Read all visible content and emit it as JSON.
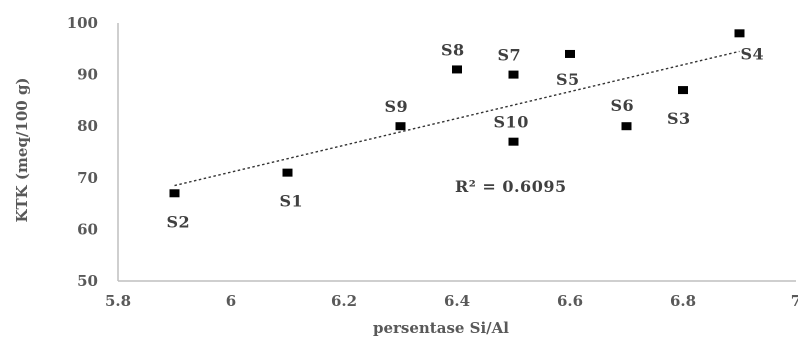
{
  "chart_data": {
    "type": "scatter",
    "xlabel": "persentase Si/Al",
    "ylabel": "KTK (meq/100 g)",
    "xlim": [
      5.8,
      7
    ],
    "ylim": [
      50,
      100
    ],
    "x_ticks": [
      "5.8",
      "6",
      "6.2",
      "6.4",
      "6.6",
      "6.8",
      "7"
    ],
    "y_ticks": [
      "50",
      "60",
      "70",
      "80",
      "90",
      "100"
    ],
    "grid": false,
    "points": [
      {
        "label": "S1",
        "x": 6.1,
        "y": 71
      },
      {
        "label": "S2",
        "x": 5.9,
        "y": 67
      },
      {
        "label": "S3",
        "x": 6.8,
        "y": 87
      },
      {
        "label": "S4",
        "x": 6.9,
        "y": 98
      },
      {
        "label": "S5",
        "x": 6.6,
        "y": 94
      },
      {
        "label": "S6",
        "x": 6.7,
        "y": 80
      },
      {
        "label": "S7",
        "x": 6.5,
        "y": 90
      },
      {
        "label": "S8",
        "x": 6.4,
        "y": 91
      },
      {
        "label": "S9",
        "x": 6.3,
        "y": 80
      },
      {
        "label": "S10",
        "x": 6.5,
        "y": 77
      }
    ],
    "trendline": {
      "type": "linear",
      "style": "dotted",
      "x_range": [
        5.9,
        6.9
      ],
      "y_start": 68.5,
      "y_end": 94.5
    },
    "annotation": "R² = 0.6095",
    "colors": {
      "marker": "#000000",
      "axis": "#bfbfbf",
      "text": "#595959"
    }
  }
}
